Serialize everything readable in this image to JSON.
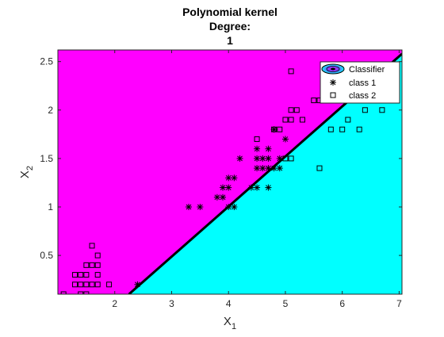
{
  "chart_data": {
    "type": "scatter",
    "title_lines": [
      "Polynomial kernel",
      "Degree:",
      "1"
    ],
    "xlabel": "X",
    "xlabel_sub": "1",
    "ylabel": "X",
    "ylabel_sub": "2",
    "xlim": [
      1.0,
      7.05
    ],
    "ylim": [
      0.1,
      2.62
    ],
    "x_ticks": [
      2,
      3,
      4,
      5,
      6,
      7
    ],
    "y_ticks": [
      0.5,
      1,
      1.5,
      2,
      2.5
    ],
    "x_tick_labels": [
      "2",
      "3",
      "4",
      "5",
      "6",
      "7"
    ],
    "y_tick_labels": [
      "0.5",
      "1",
      "1.5",
      "2",
      "2.5"
    ],
    "grid": false,
    "legend_position": "top-right",
    "colors": {
      "region_class1": "#ff00ff",
      "region_class2": "#00ffff",
      "boundary": "#000000",
      "markers": "#000000"
    },
    "decision_boundary": {
      "x": [
        2.25,
        7.05
      ],
      "y": [
        0.1,
        2.58
      ]
    },
    "series": [
      {
        "name": "class 1",
        "marker": "asterisk",
        "points": [
          [
            2.4,
            0.2
          ],
          [
            3.3,
            1.0
          ],
          [
            3.5,
            1.0
          ],
          [
            3.8,
            1.1
          ],
          [
            3.9,
            1.1
          ],
          [
            3.9,
            1.2
          ],
          [
            4.0,
            1.2
          ],
          [
            4.0,
            1.3
          ],
          [
            4.1,
            1.3
          ],
          [
            4.0,
            1.0
          ],
          [
            4.1,
            1.0
          ],
          [
            4.2,
            1.5
          ],
          [
            4.4,
            1.2
          ],
          [
            4.5,
            1.2
          ],
          [
            4.5,
            1.4
          ],
          [
            4.6,
            1.4
          ],
          [
            4.7,
            1.4
          ],
          [
            4.8,
            1.4
          ],
          [
            4.9,
            1.4
          ],
          [
            4.5,
            1.5
          ],
          [
            4.6,
            1.5
          ],
          [
            4.7,
            1.5
          ],
          [
            4.5,
            1.6
          ],
          [
            4.7,
            1.6
          ],
          [
            4.7,
            1.2
          ],
          [
            4.9,
            1.5
          ],
          [
            5.0,
            1.7
          ],
          [
            4.8,
            1.8
          ]
        ]
      },
      {
        "name": "class 2",
        "marker": "square",
        "points": [
          [
            1.1,
            0.1
          ],
          [
            1.4,
            0.1
          ],
          [
            1.5,
            0.1
          ],
          [
            1.4,
            0.2
          ],
          [
            1.5,
            0.2
          ],
          [
            1.6,
            0.2
          ],
          [
            1.7,
            0.2
          ],
          [
            1.9,
            0.2
          ],
          [
            1.3,
            0.2
          ],
          [
            1.3,
            0.3
          ],
          [
            1.4,
            0.3
          ],
          [
            1.5,
            0.3
          ],
          [
            1.7,
            0.3
          ],
          [
            1.5,
            0.4
          ],
          [
            1.6,
            0.4
          ],
          [
            1.7,
            0.4
          ],
          [
            1.7,
            0.5
          ],
          [
            1.6,
            0.6
          ],
          [
            4.5,
            1.7
          ],
          [
            4.8,
            1.8
          ],
          [
            4.9,
            1.8
          ],
          [
            5.0,
            1.9
          ],
          [
            5.1,
            1.9
          ],
          [
            5.3,
            1.9
          ],
          [
            5.1,
            2.0
          ],
          [
            5.2,
            2.0
          ],
          [
            5.0,
            1.5
          ],
          [
            5.1,
            1.5
          ],
          [
            5.6,
            1.4
          ],
          [
            5.5,
            2.1
          ],
          [
            5.6,
            2.1
          ],
          [
            5.8,
            1.8
          ],
          [
            6.0,
            1.8
          ],
          [
            6.3,
            1.8
          ],
          [
            5.9,
            2.1
          ],
          [
            6.1,
            1.9
          ],
          [
            6.4,
            2.0
          ],
          [
            6.7,
            2.0
          ],
          [
            5.1,
            2.4
          ],
          [
            5.7,
            2.4
          ]
        ]
      }
    ],
    "legend": [
      "Classifier",
      "class 1",
      "class 2"
    ]
  }
}
